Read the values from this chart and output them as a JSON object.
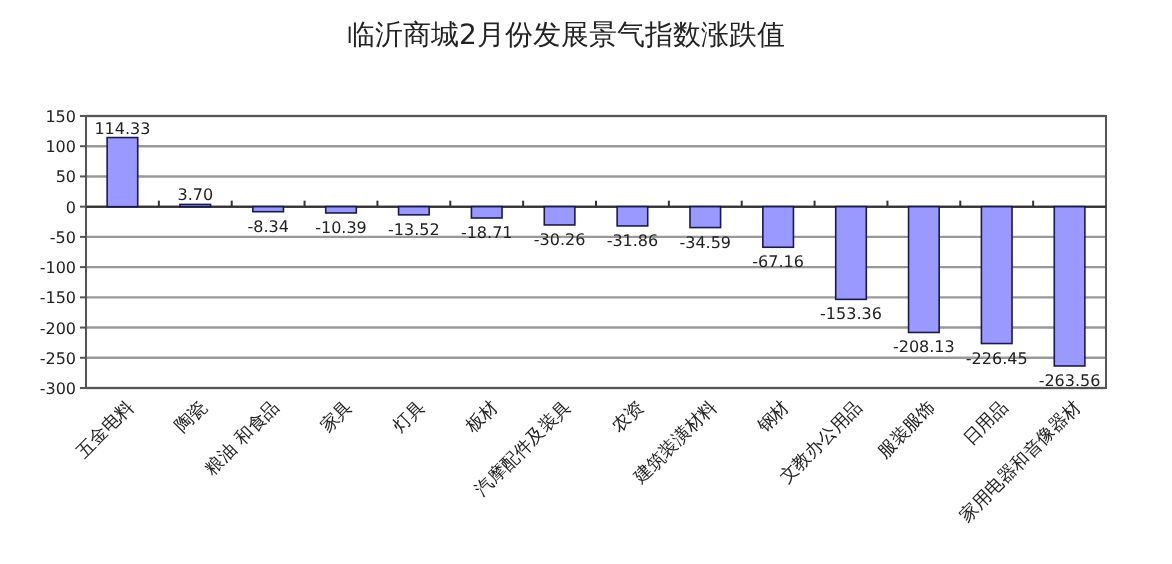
{
  "chart_data": {
    "type": "bar",
    "title": "临沂商城2月份发展景气指数涨跌值",
    "categories": [
      "五金电料",
      "陶瓷",
      "粮油 和食品",
      "家具",
      "灯具",
      "板材",
      "汽摩配件及装具",
      "农资",
      "建筑装潢材料",
      "钢材",
      "文教办公用品",
      "服装服饰",
      "日用品",
      "家用电器和音像器材"
    ],
    "values": [
      114.33,
      3.7,
      -8.34,
      -10.39,
      -13.52,
      -18.71,
      -30.26,
      -31.86,
      -34.59,
      -67.16,
      -153.36,
      -208.13,
      -226.45,
      -263.56
    ],
    "value_labels": [
      "114.33",
      "3.70",
      "-8.34",
      "-10.39",
      "-13.52",
      "-18.71",
      "-30.26",
      "-31.86",
      "-34.59",
      "-67.16",
      "-153.36",
      "-208.13",
      "-226.45",
      "-263.56"
    ],
    "color": "#9999ff",
    "ylim": [
      -300,
      150
    ],
    "yticks": [
      -300,
      -250,
      -200,
      -150,
      -100,
      -50,
      0,
      50,
      100,
      150
    ],
    "grid": "y"
  }
}
